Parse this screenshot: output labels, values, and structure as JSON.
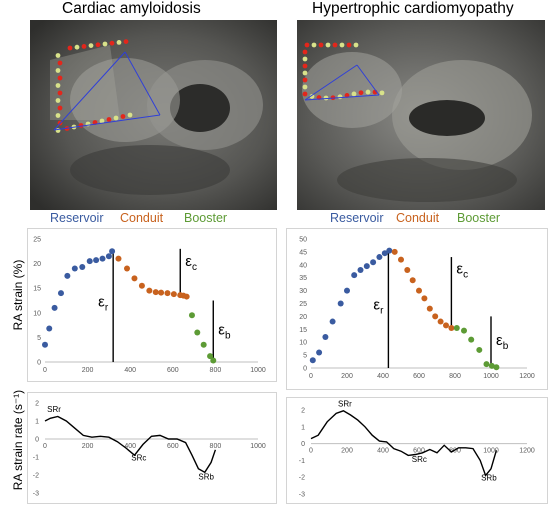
{
  "titles": {
    "left": "Cardiac amyloidosis",
    "right": "Hypertrophic cardiomyopathy"
  },
  "phases": {
    "left": {
      "reservoir": "Reservoir",
      "conduit": "Conduit",
      "booster": "Booster"
    },
    "right": {
      "reservoir": "Reservoir",
      "conduit": "Conduit",
      "booster": "Booster"
    }
  },
  "colors": {
    "reservoir": "#3a5ba0",
    "conduit": "#c8621e",
    "booster": "#5d9b35"
  },
  "y_labels": {
    "strain": "RA strain (%)",
    "strain_rate": "RA strain rate (s⁻¹)"
  },
  "chart_data": [
    {
      "id": "strain-left",
      "type": "scatter",
      "xlim": [
        0,
        1000
      ],
      "ylim": [
        0,
        25
      ],
      "xticks": [
        0,
        200,
        400,
        600,
        800,
        1000
      ],
      "yticks": [
        0,
        5,
        10,
        15,
        20,
        25
      ],
      "series": [
        {
          "phase": "reservoir",
          "color": "#3a5ba0",
          "x": [
            0,
            20,
            45,
            75,
            105,
            140,
            175,
            210,
            240,
            270,
            300,
            315
          ],
          "y": [
            3.5,
            6.8,
            11,
            14,
            17.5,
            19,
            19.3,
            20.5,
            20.7,
            21,
            21.5,
            22.5
          ]
        },
        {
          "phase": "conduit",
          "color": "#c8621e",
          "x": [
            345,
            385,
            420,
            455,
            490,
            520,
            545,
            575,
            605,
            635,
            650,
            665
          ],
          "y": [
            21,
            19,
            17,
            15.5,
            14.5,
            14.2,
            14.1,
            14.0,
            13.8,
            13.6,
            13.5,
            13.3
          ]
        },
        {
          "phase": "booster",
          "color": "#5d9b35",
          "x": [
            690,
            715,
            745,
            775,
            790
          ],
          "y": [
            9.5,
            6.0,
            3.5,
            1.2,
            0.3
          ]
        }
      ],
      "markers": [
        {
          "x": 320,
          "y_from": 0,
          "y_to": 22.5,
          "label": "ε",
          "sub": "r"
        },
        {
          "x": 635,
          "y_from": 13.5,
          "y_to": 23,
          "label": "ε",
          "sub": "c"
        },
        {
          "x": 790,
          "y_from": 0,
          "y_to": 12.5,
          "label": "ε",
          "sub": "b"
        }
      ]
    },
    {
      "id": "strain-right",
      "type": "scatter",
      "xlim": [
        0,
        1200
      ],
      "ylim": [
        0,
        50
      ],
      "xticks": [
        0,
        200,
        400,
        600,
        800,
        1000,
        1200
      ],
      "yticks": [
        0,
        5,
        10,
        15,
        20,
        25,
        30,
        35,
        40,
        45,
        50
      ],
      "series": [
        {
          "phase": "reservoir",
          "color": "#3a5ba0",
          "x": [
            10,
            45,
            80,
            120,
            165,
            200,
            240,
            275,
            310,
            345,
            380,
            410,
            435
          ],
          "y": [
            3,
            6,
            12,
            18,
            25,
            30,
            36,
            38,
            39.5,
            41,
            43,
            44.5,
            45.5
          ]
        },
        {
          "phase": "conduit",
          "color": "#c8621e",
          "x": [
            465,
            500,
            535,
            565,
            600,
            630,
            660,
            690,
            720,
            750,
            780
          ],
          "y": [
            45,
            42,
            38,
            34,
            30,
            27,
            23,
            20,
            18,
            16.5,
            15.5
          ]
        },
        {
          "phase": "booster",
          "color": "#5d9b35",
          "x": [
            810,
            850,
            890,
            935,
            975,
            1005,
            1030
          ],
          "y": [
            15.5,
            14.5,
            11,
            7,
            1.5,
            0.8,
            0.3
          ]
        }
      ],
      "markers": [
        {
          "x": 430,
          "y_from": 0,
          "y_to": 45.5,
          "label": "ε",
          "sub": "r"
        },
        {
          "x": 780,
          "y_from": 15.5,
          "y_to": 43,
          "label": "ε",
          "sub": "c"
        },
        {
          "x": 1000,
          "y_from": 0,
          "y_to": 20,
          "label": "ε",
          "sub": "b"
        }
      ]
    },
    {
      "id": "rate-left",
      "type": "line",
      "xlim": [
        0,
        1000
      ],
      "ylim": [
        -3,
        2
      ],
      "xticks": [
        0,
        200,
        400,
        600,
        800,
        1000
      ],
      "yticks": [
        2,
        1,
        0,
        -1,
        -2,
        -3
      ],
      "x": [
        0,
        25,
        60,
        100,
        140,
        180,
        220,
        260,
        300,
        340,
        380,
        420,
        460,
        500,
        540,
        580,
        620,
        660,
        690,
        720,
        750,
        780,
        800
      ],
      "y": [
        1.0,
        1.15,
        1.25,
        1.0,
        0.6,
        0.2,
        0.1,
        0.15,
        0.1,
        -0.15,
        -0.5,
        -0.9,
        -0.3,
        0.15,
        0.2,
        0.0,
        0.0,
        -0.2,
        -0.9,
        -1.65,
        -1.85,
        -1.3,
        -0.6
      ],
      "labels": [
        {
          "text": "SRr",
          "x": 10,
          "y": 1.5
        },
        {
          "text": "SRc",
          "x": 405,
          "y": -1.2
        },
        {
          "text": "SRb",
          "x": 720,
          "y": -2.25
        }
      ]
    },
    {
      "id": "rate-right",
      "type": "line",
      "xlim": [
        0,
        1200
      ],
      "ylim": [
        -3,
        2
      ],
      "xticks": [
        0,
        200,
        400,
        600,
        800,
        1000,
        1200
      ],
      "yticks": [
        2,
        1,
        0,
        -1,
        -2,
        -3
      ],
      "x": [
        0,
        40,
        90,
        140,
        180,
        220,
        260,
        300,
        340,
        380,
        420,
        460,
        500,
        540,
        580,
        620,
        660,
        700,
        740,
        780,
        820,
        860,
        900,
        940,
        970,
        1000,
        1030
      ],
      "y": [
        0.3,
        0.5,
        1.3,
        1.8,
        1.95,
        1.7,
        1.4,
        1.0,
        0.5,
        0.15,
        0.1,
        -0.3,
        -0.45,
        -0.7,
        -0.65,
        -0.55,
        -0.35,
        -0.55,
        -0.1,
        -0.5,
        -0.25,
        -0.25,
        -0.3,
        -1.0,
        -1.9,
        -1.5,
        -0.4
      ],
      "labels": [
        {
          "text": "SRr",
          "x": 150,
          "y": 2.2
        },
        {
          "text": "SRc",
          "x": 560,
          "y": -1.1
        },
        {
          "text": "SRb",
          "x": 945,
          "y": -2.2
        }
      ]
    }
  ]
}
